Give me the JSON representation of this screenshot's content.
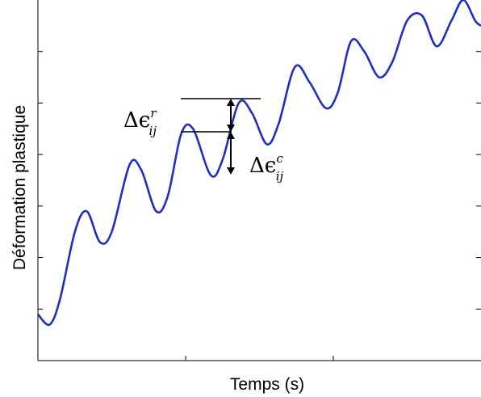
{
  "chart_data": {
    "type": "line",
    "xlabel": "Temps (s)",
    "ylabel": "Déformation plastique",
    "xlim": [
      0,
      3
    ],
    "ylim": [
      0,
      7
    ],
    "grid": false,
    "series": [
      {
        "color": "#1f2fbf",
        "x": [
          0.0,
          0.08,
          0.15,
          0.25,
          0.33,
          0.42,
          0.5,
          0.62,
          0.7,
          0.8,
          0.88,
          0.97,
          1.05,
          1.17,
          1.25,
          1.36,
          1.45,
          1.55,
          1.63,
          1.74,
          1.84,
          1.95,
          2.03,
          2.12,
          2.21,
          2.31,
          2.4,
          2.5,
          2.6,
          2.7,
          2.8,
          2.88,
          2.96,
          3.0
        ],
        "y": [
          0.9,
          0.7,
          1.2,
          2.5,
          2.9,
          2.3,
          2.5,
          3.8,
          3.7,
          2.9,
          3.2,
          4.4,
          4.5,
          3.6,
          3.9,
          5.0,
          4.8,
          4.2,
          4.6,
          5.7,
          5.4,
          4.9,
          5.2,
          6.2,
          6.0,
          5.5,
          5.8,
          6.6,
          6.7,
          6.1,
          6.6,
          7.0,
          6.6,
          6.5
        ]
      }
    ],
    "annotations": [
      {
        "label": "Δε_ij^r",
        "text_main": "Δϵ",
        "sub": "ij",
        "sup": "r"
      },
      {
        "label": "Δε_ij^c",
        "text_main": "Δϵ",
        "sub": "ij",
        "sup": "c"
      }
    ]
  }
}
